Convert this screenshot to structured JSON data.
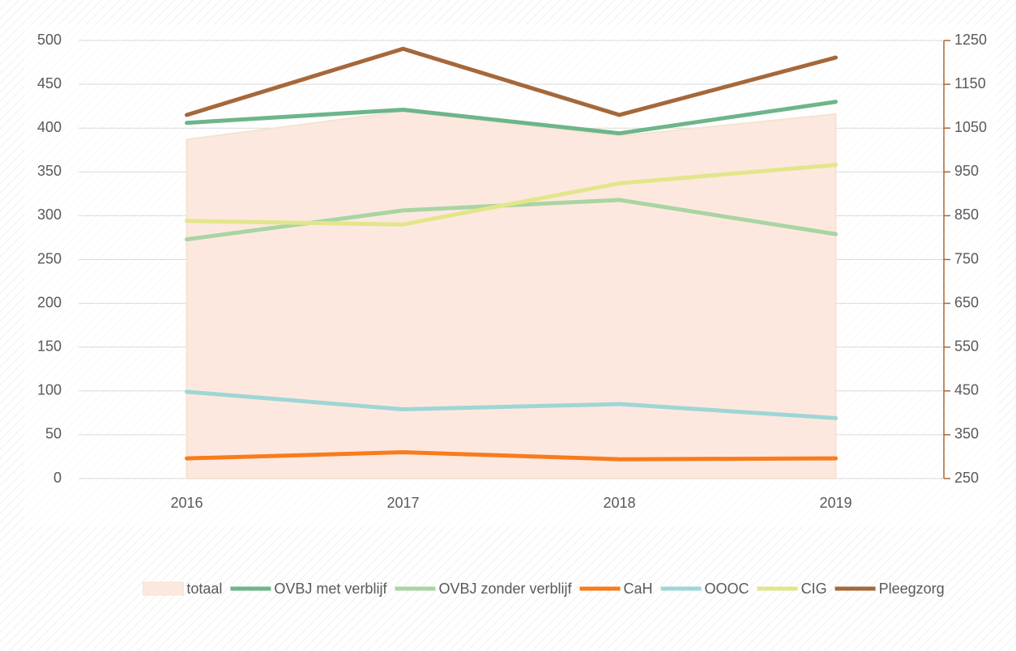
{
  "chart_data": {
    "type": "line",
    "categories": [
      "2016",
      "2017",
      "2018",
      "2019"
    ],
    "series": [
      {
        "name": "totaal",
        "color": "#fde8e0",
        "style": "area",
        "values": [
          387,
          419,
          391,
          416
        ]
      },
      {
        "name": "OVBJ met verblijf",
        "color": "#6db58a",
        "values": [
          406,
          421,
          394,
          430
        ]
      },
      {
        "name": "OVBJ zonder verblijf",
        "color": "#a8d5a2",
        "values": [
          273,
          306,
          318,
          279
        ]
      },
      {
        "name": "CaH",
        "color": "#f97b1b",
        "values": [
          23,
          30,
          22,
          23
        ]
      },
      {
        "name": "OOOC",
        "color": "#9ed6d6",
        "values": [
          99,
          79,
          85,
          69
        ]
      },
      {
        "name": "CIG",
        "color": "#e2e68a",
        "values": [
          294,
          290,
          337,
          358
        ]
      },
      {
        "name": "Pleegzorg",
        "color": "#a5683a",
        "axis": "y2",
        "values": [
          1080,
          1231,
          1080,
          1211
        ]
      }
    ],
    "ylim": [
      0,
      500
    ],
    "yticks": [
      0,
      50,
      100,
      150,
      200,
      250,
      300,
      350,
      400,
      450,
      500
    ],
    "y2lim": [
      250,
      1250
    ],
    "y2ticks": [
      250,
      350,
      450,
      550,
      650,
      750,
      850,
      950,
      1050,
      1150,
      1250
    ],
    "y2color": "#a5683a",
    "grid": true,
    "legend": "bottom"
  }
}
